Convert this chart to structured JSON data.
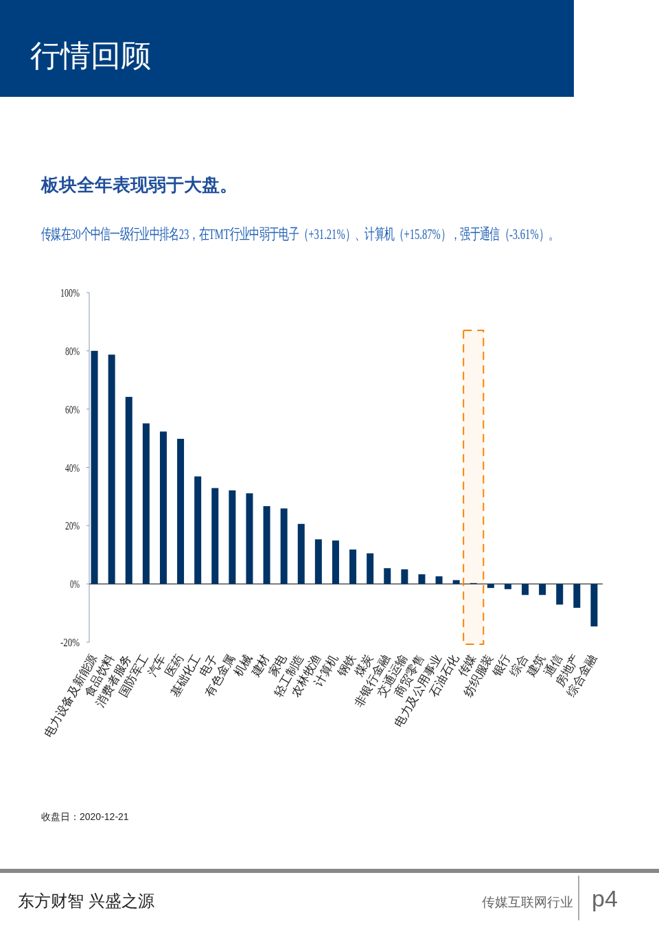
{
  "chart_data": {
    "type": "bar",
    "title": "板块全年表现弱于大盘。",
    "subtitle": "传媒在30个中信一级行业中排名23，在TMT行业中弱于电子（+31.21%）、计算机（+15.87%），强于通信（-3.61%）。",
    "annotations": [
      "行情回顾",
      "收盘日：2020-12-21",
      "东方财智 兴盛之源",
      "传媒互联网行业",
      "p4"
    ],
    "categories": [
      "电力设备及新能源",
      "食品饮料",
      "消费者服务",
      "国防军工",
      "汽车",
      "医药",
      "基础化工",
      "电子",
      "有色金属",
      "机械",
      "建材",
      "家电",
      "轻工制造",
      "农林牧渔",
      "计算机",
      "钢铁",
      "煤炭",
      "非银行金融",
      "交通运输",
      "商贸零售",
      "电力及公用事业",
      "石油石化",
      "传媒",
      "纺织服装",
      "银行",
      "综合",
      "建筑",
      "通信",
      "房地产",
      "综合金融"
    ],
    "values": [
      80.0,
      78.7,
      64.2,
      55.1,
      52.3,
      49.8,
      36.9,
      32.9,
      32.1,
      31.1,
      26.7,
      25.9,
      20.6,
      15.3,
      14.9,
      11.8,
      10.5,
      5.4,
      5.0,
      3.3,
      2.6,
      1.3,
      0.3,
      -1.4,
      -1.8,
      -3.8,
      -3.8,
      -7.1,
      -8.2,
      -14.6
    ],
    "color": "#003366",
    "ylim": [
      -20,
      100
    ],
    "yticks": [
      {
        "value": -20,
        "label": "-20%"
      },
      {
        "value": 0,
        "label": "0%"
      },
      {
        "value": 20,
        "label": "20%"
      },
      {
        "value": 40,
        "label": "40%"
      },
      {
        "value": 60,
        "label": "60%"
      },
      {
        "value": 80,
        "label": "80%"
      },
      {
        "value": 100,
        "label": "100%"
      }
    ],
    "bands": [
      {
        "axis": "x",
        "from": "传媒",
        "to": "传媒",
        "color": "#ff8000"
      }
    ]
  }
}
